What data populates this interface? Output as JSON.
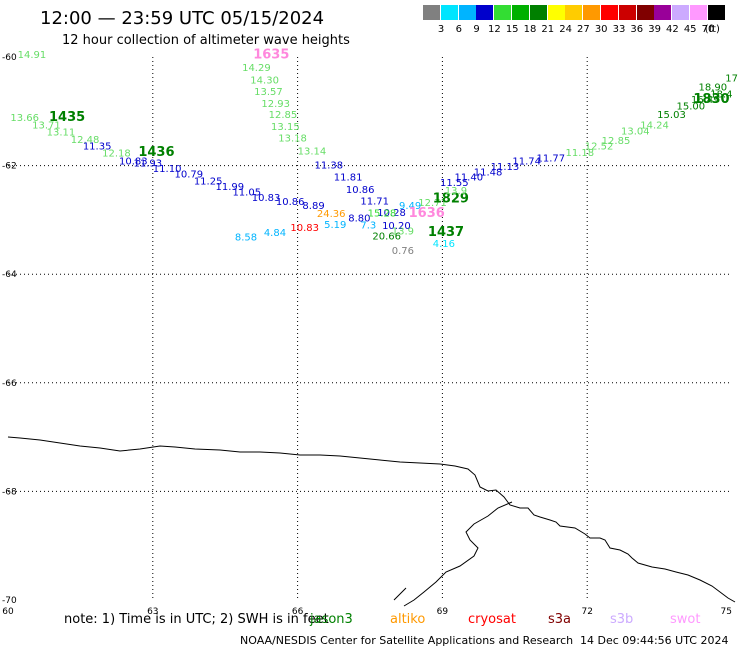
{
  "header": {
    "title": "12:00 — 23:59 UTC 05/15/2024",
    "subtitle": "12 hour collection of altimeter wave heights"
  },
  "legend": {
    "unit": "(ft)",
    "items": [
      {
        "label": "3",
        "color": "#808080"
      },
      {
        "label": "6",
        "color": "#00e5ff"
      },
      {
        "label": "9",
        "color": "#00b4ff"
      },
      {
        "label": "12",
        "color": "#0000cc"
      },
      {
        "label": "15",
        "color": "#33dd33"
      },
      {
        "label": "18",
        "color": "#00b000"
      },
      {
        "label": "21",
        "color": "#008000"
      },
      {
        "label": "24",
        "color": "#ffff00"
      },
      {
        "label": "27",
        "color": "#ffcc00"
      },
      {
        "label": "30",
        "color": "#ff9900"
      },
      {
        "label": "33",
        "color": "#ff0000"
      },
      {
        "label": "36",
        "color": "#cc0000"
      },
      {
        "label": "39",
        "color": "#800000"
      },
      {
        "label": "42",
        "color": "#990099"
      },
      {
        "label": "45",
        "color": "#ccaaff"
      },
      {
        "label": "70",
        "color": "#ff99ff"
      },
      {
        "label": "",
        "color": "#000000"
      }
    ]
  },
  "map": {
    "x_ticks": [
      "60",
      "63",
      "66",
      "69",
      "72",
      "75"
    ],
    "y_ticks": [
      "-60",
      "-62",
      "-64",
      "-66",
      "-68",
      "-70"
    ],
    "lon_range": [
      60,
      75
    ],
    "lat_range": [
      -60,
      -70
    ],
    "points": [
      {
        "text": "14.91",
        "lon": 60.2,
        "lat": -60.02,
        "color": "#66dd66"
      },
      {
        "text": "1635",
        "lon": 65.08,
        "lat": -60.03,
        "color": "#ff88dd",
        "time": true
      },
      {
        "text": "14.29",
        "lon": 64.85,
        "lat": -60.26,
        "color": "#66dd66"
      },
      {
        "text": "14.30",
        "lon": 65.02,
        "lat": -60.49,
        "color": "#66dd66"
      },
      {
        "text": "13.57",
        "lon": 65.1,
        "lat": -60.7,
        "color": "#66dd66"
      },
      {
        "text": "12.93",
        "lon": 65.25,
        "lat": -60.92,
        "color": "#66dd66"
      },
      {
        "text": "12.85",
        "lon": 65.4,
        "lat": -61.12,
        "color": "#66dd66"
      },
      {
        "text": "13.15",
        "lon": 65.45,
        "lat": -61.34,
        "color": "#66dd66"
      },
      {
        "text": "13.18",
        "lon": 65.6,
        "lat": -61.56,
        "color": "#66dd66"
      },
      {
        "text": "13.14",
        "lon": 66.0,
        "lat": -61.8,
        "color": "#66dd66"
      },
      {
        "text": "13.66",
        "lon": 60.05,
        "lat": -61.18,
        "color": "#66dd66"
      },
      {
        "text": "1435",
        "lon": 60.85,
        "lat": -61.18,
        "color": "#008000",
        "time": true
      },
      {
        "text": "13.71",
        "lon": 60.5,
        "lat": -61.32,
        "color": "#66dd66"
      },
      {
        "text": "13.11",
        "lon": 60.8,
        "lat": -61.45,
        "color": "#66dd66"
      },
      {
        "text": "12.48",
        "lon": 61.3,
        "lat": -61.58,
        "color": "#66dd66"
      },
      {
        "text": "11.35",
        "lon": 61.55,
        "lat": -61.7,
        "color": "#0000cc"
      },
      {
        "text": "12.18",
        "lon": 61.95,
        "lat": -61.83,
        "color": "#66dd66"
      },
      {
        "text": "1436",
        "lon": 62.7,
        "lat": -61.82,
        "color": "#008000",
        "time": true
      },
      {
        "text": "10.83",
        "lon": 62.3,
        "lat": -61.98,
        "color": "#0000cc"
      },
      {
        "text": "11.93",
        "lon": 62.6,
        "lat": -62.02,
        "color": "#0000cc"
      },
      {
        "text": "11.10",
        "lon": 63.0,
        "lat": -62.12,
        "color": "#0000cc"
      },
      {
        "text": "10.79",
        "lon": 63.45,
        "lat": -62.22,
        "color": "#0000cc"
      },
      {
        "text": "11.25",
        "lon": 63.85,
        "lat": -62.35,
        "color": "#0000cc"
      },
      {
        "text": "11.99",
        "lon": 64.3,
        "lat": -62.45,
        "color": "#0000cc"
      },
      {
        "text": "11.05",
        "lon": 64.65,
        "lat": -62.55,
        "color": "#0000cc"
      },
      {
        "text": "10.83",
        "lon": 65.05,
        "lat": -62.65,
        "color": "#0000cc"
      },
      {
        "text": "10.86",
        "lon": 65.55,
        "lat": -62.73,
        "color": "#0000cc"
      },
      {
        "text": "8.89",
        "lon": 66.1,
        "lat": -62.8,
        "color": "#0000cc"
      },
      {
        "text": "11.38",
        "lon": 66.35,
        "lat": -62.05,
        "color": "#0000cc"
      },
      {
        "text": "11.81",
        "lon": 66.75,
        "lat": -62.27,
        "color": "#0000cc"
      },
      {
        "text": "10.86",
        "lon": 67.0,
        "lat": -62.5,
        "color": "#0000cc"
      },
      {
        "text": "11.71",
        "lon": 67.3,
        "lat": -62.72,
        "color": "#0000cc"
      },
      {
        "text": "24.36",
        "lon": 66.4,
        "lat": -62.95,
        "color": "#ff9900"
      },
      {
        "text": "8.80",
        "lon": 67.05,
        "lat": -63.03,
        "color": "#0000cc"
      },
      {
        "text": "10.28",
        "lon": 67.65,
        "lat": -62.93,
        "color": "#0000cc"
      },
      {
        "text": "15.28",
        "lon": 67.45,
        "lat": -62.94,
        "color": "#33dd33"
      },
      {
        "text": "12.71",
        "lon": 68.5,
        "lat": -62.74,
        "color": "#66dd66"
      },
      {
        "text": "9.49",
        "lon": 68.1,
        "lat": -62.8,
        "color": "#00b4ff"
      },
      {
        "text": "1636",
        "lon": 68.3,
        "lat": -62.95,
        "color": "#ff88dd",
        "time": true
      },
      {
        "text": "10.83",
        "lon": 65.85,
        "lat": -63.2,
        "color": "#ff0000"
      },
      {
        "text": "5.19",
        "lon": 66.55,
        "lat": -63.15,
        "color": "#00b4ff"
      },
      {
        "text": "7.3",
        "lon": 67.3,
        "lat": -63.16,
        "color": "#00b4ff"
      },
      {
        "text": "10.20",
        "lon": 67.75,
        "lat": -63.17,
        "color": "#0000cc"
      },
      {
        "text": "13.9",
        "lon": 67.95,
        "lat": -63.27,
        "color": "#66dd66"
      },
      {
        "text": "4.84",
        "lon": 65.3,
        "lat": -63.3,
        "color": "#00b4ff"
      },
      {
        "text": "8.58",
        "lon": 64.7,
        "lat": -63.38,
        "color": "#00b4ff"
      },
      {
        "text": "20.66",
        "lon": 67.55,
        "lat": -63.36,
        "color": "#008000"
      },
      {
        "text": "0.76",
        "lon": 67.95,
        "lat": -63.63,
        "color": "#808080"
      },
      {
        "text": "1437",
        "lon": 68.7,
        "lat": -63.3,
        "color": "#008000",
        "time": true
      },
      {
        "text": "4.16",
        "lon": 68.8,
        "lat": -63.5,
        "color": "#00e5ff"
      },
      {
        "text": "1829",
        "lon": 68.8,
        "lat": -62.68,
        "color": "#008000",
        "time": true
      },
      {
        "text": "13.9",
        "lon": 69.05,
        "lat": -62.52,
        "color": "#66dd66"
      },
      {
        "text": "11.55",
        "lon": 68.95,
        "lat": -62.38,
        "color": "#0000cc"
      },
      {
        "text": "11.40",
        "lon": 69.25,
        "lat": -62.27,
        "color": "#0000cc"
      },
      {
        "text": "11.48",
        "lon": 69.65,
        "lat": -62.18,
        "color": "#0000cc"
      },
      {
        "text": "11.13",
        "lon": 70.0,
        "lat": -62.08,
        "color": "#0000cc"
      },
      {
        "text": "11.74",
        "lon": 70.45,
        "lat": -61.98,
        "color": "#0000cc"
      },
      {
        "text": "11.77",
        "lon": 70.95,
        "lat": -61.92,
        "color": "#0000cc"
      },
      {
        "text": "11.18",
        "lon": 71.55,
        "lat": -61.82,
        "color": "#66dd66"
      },
      {
        "text": "12.52",
        "lon": 71.95,
        "lat": -61.7,
        "color": "#66dd66"
      },
      {
        "text": "12.85",
        "lon": 72.3,
        "lat": -61.6,
        "color": "#66dd66"
      },
      {
        "text": "13.04",
        "lon": 72.7,
        "lat": -61.43,
        "color": "#66dd66"
      },
      {
        "text": "14.24",
        "lon": 73.1,
        "lat": -61.32,
        "color": "#66dd66"
      },
      {
        "text": "15.03",
        "lon": 73.45,
        "lat": -61.12,
        "color": "#008000"
      },
      {
        "text": "15.00",
        "lon": 73.85,
        "lat": -60.97,
        "color": "#008000"
      },
      {
        "text": "16.49",
        "lon": 74.15,
        "lat": -60.85,
        "color": "#008000"
      },
      {
        "text": "18.4",
        "lon": 74.55,
        "lat": -60.75,
        "color": "#008000"
      },
      {
        "text": "1830",
        "lon": 74.95,
        "lat": -60.85,
        "color": "#008000",
        "time": true
      },
      {
        "text": "18.90",
        "lon": 74.9,
        "lat": -60.62,
        "color": "#008000"
      },
      {
        "text": "17",
        "lon": 75.25,
        "lat": -60.45,
        "color": "#008000"
      }
    ]
  },
  "footer": {
    "note": "note:  1) Time is in UTC; 2) SWH is in feet",
    "satellites": [
      {
        "name": "jason3",
        "color": "#008000"
      },
      {
        "name": "altiko",
        "color": "#ff9900"
      },
      {
        "name": "cryosat",
        "color": "#ff0000"
      },
      {
        "name": "s3a",
        "color": "#800000"
      },
      {
        "name": "s3b",
        "color": "#ccaaff"
      },
      {
        "name": "swot",
        "color": "#ff99ff"
      }
    ],
    "credit": "NOAA/NESDIS Center for Satellite Applications and Research",
    "date": "14 Dec 09:44:56 UTC 2024"
  }
}
